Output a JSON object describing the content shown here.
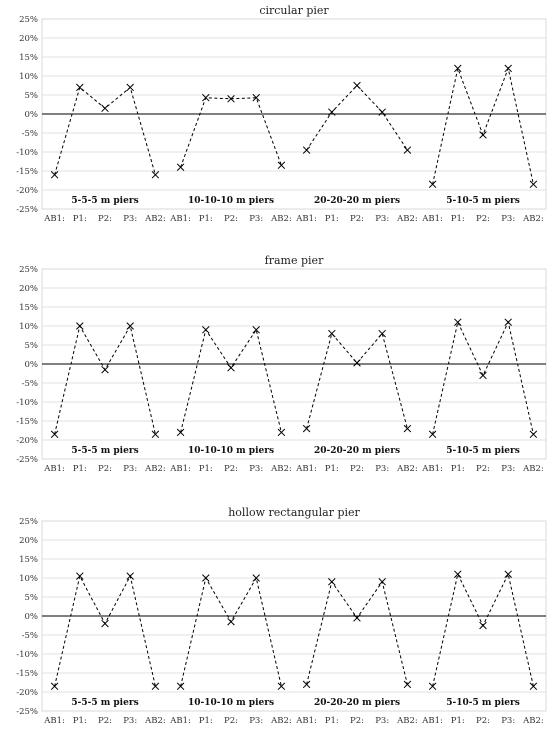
{
  "chart_data": [
    {
      "type": "line",
      "title": "circular pier",
      "yticks": [
        "25%",
        "20%",
        "15%",
        "10%",
        "5%",
        "0%",
        "-5%",
        "-10%",
        "-15%",
        "-20%",
        "-25%"
      ],
      "ylim": [
        -25,
        25
      ],
      "categories": [
        "AB1:",
        "P1:",
        "P2:",
        "P3:",
        "AB2:",
        "AB1:",
        "P1:",
        "P2:",
        "P3:",
        "AB2:",
        "AB1:",
        "P1:",
        "P2:",
        "P3:",
        "AB2:",
        "AB1:",
        "P1:",
        "P2:",
        "P3:",
        "AB2:"
      ],
      "groups": [
        {
          "label": "5-5-5 m piers",
          "values": [
            -16,
            7,
            1.5,
            7,
            -16
          ]
        },
        {
          "label": "10-10-10 m piers",
          "values": [
            -14,
            4.3,
            4,
            4.3,
            -13.5
          ]
        },
        {
          "label": "20-20-20 m piers",
          "values": [
            -9.5,
            0.5,
            7.5,
            0.5,
            -9.5
          ]
        },
        {
          "label": "5-10-5 m piers",
          "values": [
            -18.5,
            12,
            -5.5,
            12,
            -18.5
          ]
        }
      ]
    },
    {
      "type": "line",
      "title": "frame pier",
      "yticks": [
        "25%",
        "20%",
        "15%",
        "10%",
        "5%",
        "0%",
        "-5%",
        "-10%",
        "-15%",
        "-20%",
        "-25%"
      ],
      "ylim": [
        -25,
        25
      ],
      "categories": [
        "AB1:",
        "P1:",
        "P2:",
        "P3:",
        "AB2:",
        "AB1:",
        "P1:",
        "P2:",
        "P3:",
        "AB2:",
        "AB1:",
        "P1:",
        "P2:",
        "P3:",
        "AB2:",
        "AB1:",
        "P1:",
        "P2:",
        "P3:",
        "AB2:"
      ],
      "groups": [
        {
          "label": "5-5-5 m piers",
          "values": [
            -18.5,
            10,
            -1.5,
            10,
            -18.5
          ]
        },
        {
          "label": "10-10-10 m piers",
          "values": [
            -18,
            9,
            -1,
            9,
            -18
          ]
        },
        {
          "label": "20-20-20 m piers",
          "values": [
            -17,
            8,
            0.3,
            8,
            -17
          ]
        },
        {
          "label": "5-10-5 m piers",
          "values": [
            -18.5,
            11,
            -3,
            11,
            -18.5
          ]
        }
      ]
    },
    {
      "type": "line",
      "title": "hollow rectangular pier",
      "yticks": [
        "25%",
        "20%",
        "15%",
        "10%",
        "5%",
        "0%",
        "-5%",
        "-10%",
        "-15%",
        "-20%",
        "-25%"
      ],
      "ylim": [
        -25,
        25
      ],
      "categories": [
        "AB1:",
        "P1:",
        "P2:",
        "P3:",
        "AB2:",
        "AB1:",
        "P1:",
        "P2:",
        "P3:",
        "AB2:",
        "AB1:",
        "P1:",
        "P2:",
        "P3:",
        "AB2:",
        "AB1:",
        "P1:",
        "P2:",
        "P3:",
        "AB2:"
      ],
      "groups": [
        {
          "label": "5-5-5 m piers",
          "values": [
            -18.5,
            10.5,
            -2,
            10.5,
            -18.5
          ]
        },
        {
          "label": "10-10-10 m piers",
          "values": [
            -18.5,
            10,
            -1.5,
            10,
            -18.5
          ]
        },
        {
          "label": "20-20-20 m piers",
          "values": [
            -18,
            9,
            -0.5,
            9,
            -18
          ]
        },
        {
          "label": "5-10-5 m piers",
          "values": [
            -18.5,
            11,
            -2.5,
            11,
            -18.5
          ]
        }
      ]
    }
  ]
}
